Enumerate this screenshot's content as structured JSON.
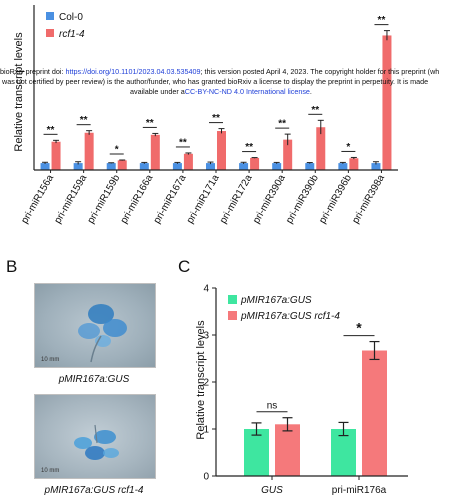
{
  "panel_labels": {
    "b": "B",
    "c": "C"
  },
  "watermark": {
    "line1_prefix": "bioRxiv preprint doi: ",
    "line1_link": "https://doi.org/10.1101/2023.04.03.535409",
    "line1_suffix": "; this version posted April 4, 2023. The copyright holder for this preprint (wh",
    "line2_prefix": "was not certified by peer review) is the author/funder, who has granted bioRxiv a license to display the preprint in perpetuity. It is made",
    "line3_prefix": "available under a",
    "line3_link": "CC-BY-NC-ND 4.0 International license",
    "line3_suffix": "."
  },
  "photos": [
    {
      "caption": "pMIR167a:GUS",
      "scale_text": "10 mm"
    },
    {
      "caption": "pMIR167a:GUS rcf1-4",
      "scale_text": "10 mm"
    }
  ],
  "chart_data": [
    {
      "type": "bar",
      "ylabel": "Relative transcript levels",
      "categories": [
        "pri-miR156a",
        "pri-miR159a",
        "pri-miR159b",
        "pri-miR166a",
        "pri-miR167a",
        "pri-miR171a",
        "pri-miR172a",
        "pri-miR390a",
        "pri-miR390b",
        "pri-miR396b",
        "pri-miR398a"
      ],
      "series": [
        {
          "name": "Col-0",
          "color": "#4a90e2",
          "values": [
            1,
            1,
            1,
            1,
            1,
            1,
            1,
            1,
            1,
            1,
            1
          ],
          "errors": [
            0.12,
            0.2,
            0.05,
            0.1,
            0.1,
            0.15,
            0.12,
            0.1,
            0.08,
            0.1,
            0.2
          ]
        },
        {
          "name": "rcf1-4",
          "color": "#f06b6b",
          "values": [
            4.1,
            5.4,
            1.4,
            5.1,
            2.35,
            5.65,
            1.75,
            4.4,
            6.2,
            1.7,
            19.5
          ],
          "errors": [
            0.2,
            0.3,
            0.05,
            0.2,
            0.12,
            0.35,
            0.05,
            0.8,
            1.0,
            0.12,
            0.7
          ]
        }
      ],
      "significance": [
        "**",
        "**",
        "*",
        "**",
        "**",
        "**",
        "**",
        "**",
        "**",
        "*",
        "**"
      ],
      "legend_position": "top-left"
    },
    {
      "type": "bar",
      "ylabel": "Relative transcript levels",
      "categories": [
        "GUS",
        "pri-miR176a"
      ],
      "ylim": [
        0,
        4
      ],
      "yticks": [
        "0",
        "1",
        "2",
        "3",
        "4"
      ],
      "series": [
        {
          "name": "pMIR167a:GUS",
          "color": "#3ee6a0",
          "values": [
            1.0,
            1.0
          ],
          "errors": [
            0.13,
            0.14
          ]
        },
        {
          "name": "pMIR167a:GUS rcf1-4",
          "color": "#f5797b",
          "values": [
            1.1,
            2.67
          ],
          "errors": [
            0.14,
            0.19
          ]
        }
      ],
      "significance": [
        "ns",
        "*"
      ],
      "legend_position": "top-left"
    }
  ]
}
